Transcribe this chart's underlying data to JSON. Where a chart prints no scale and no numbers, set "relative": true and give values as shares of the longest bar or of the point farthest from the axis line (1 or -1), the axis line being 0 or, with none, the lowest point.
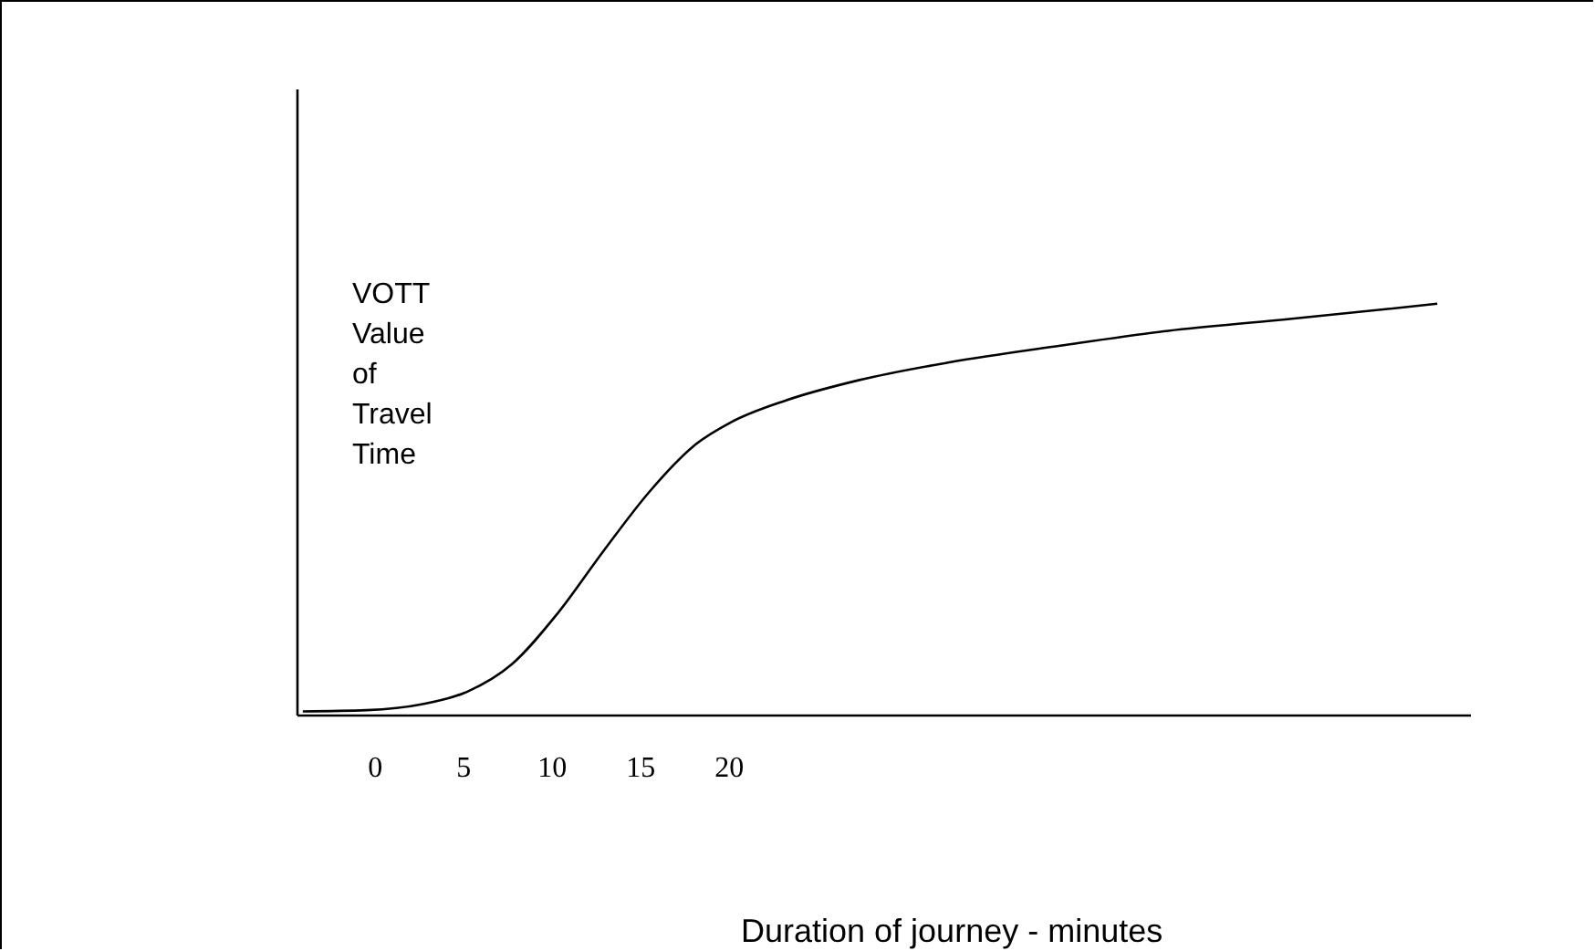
{
  "chart_data": {
    "type": "line",
    "relative": true,
    "xlabel": "Duration of journey - minutes",
    "ylabel": "VOTT Value of Travel Time",
    "xlim": [
      -4.4,
      61.9
    ],
    "xticks": [
      0,
      5,
      10,
      15,
      20
    ],
    "marker": "none",
    "line_style": "solid",
    "grid": false,
    "legend": false,
    "x": [
      -4.1,
      -0.5,
      2.6,
      5.2,
      7.7,
      10.3,
      12.9,
      15.5,
      18.0,
      20.1,
      23.2,
      27.3,
      32.5,
      38.7,
      44.8,
      51.0,
      57.2,
      60.0
    ],
    "series": [
      {
        "color": "#000000",
        "values": [
          0.01,
          0.013,
          0.027,
          0.058,
          0.124,
          0.248,
          0.4,
          0.544,
          0.655,
          0.712,
          0.765,
          0.814,
          0.858,
          0.898,
          0.934,
          0.96,
          0.987,
          1
        ]
      }
    ]
  }
}
